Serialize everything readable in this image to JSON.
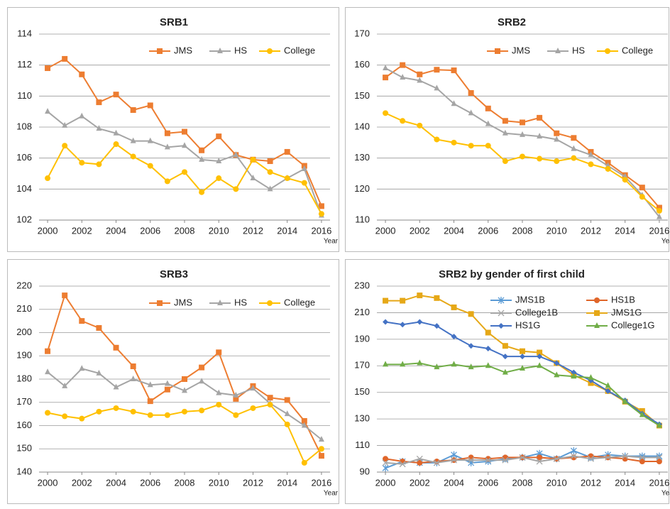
{
  "chart_data": [
    {
      "type": "line",
      "title": "SRB1",
      "xlabel": "Year",
      "x": [
        2000,
        2001,
        2002,
        2003,
        2004,
        2005,
        2006,
        2007,
        2008,
        2009,
        2010,
        2011,
        2012,
        2013,
        2014,
        2015,
        2016
      ],
      "xlim": [
        1999.5,
        2016.5
      ],
      "xticks": [
        2000,
        2002,
        2004,
        2006,
        2008,
        2010,
        2012,
        2014,
        2016
      ],
      "ylim": [
        102,
        114
      ],
      "yticks": [
        102,
        104,
        106,
        108,
        110,
        112,
        114
      ],
      "grid": true,
      "legend": "top-right",
      "series": [
        {
          "name": "JMS",
          "color": "#ed7d31",
          "marker": "square",
          "values": [
            111.8,
            112.4,
            111.4,
            109.6,
            110.1,
            109.1,
            109.4,
            107.6,
            107.7,
            106.5,
            107.4,
            106.2,
            105.9,
            105.8,
            106.4,
            105.5,
            102.9
          ]
        },
        {
          "name": "HS",
          "color": "#a5a5a5",
          "marker": "triangle",
          "values": [
            109.0,
            108.1,
            108.7,
            107.9,
            107.6,
            107.1,
            107.1,
            106.7,
            106.8,
            105.9,
            105.8,
            106.2,
            104.7,
            104.0,
            104.7,
            105.3,
            102.3
          ]
        },
        {
          "name": "College",
          "color": "#ffc000",
          "marker": "circle",
          "values": [
            104.7,
            106.8,
            105.7,
            105.6,
            106.9,
            106.1,
            105.5,
            104.5,
            105.1,
            103.8,
            104.7,
            104.0,
            105.9,
            105.1,
            104.7,
            104.4,
            102.4
          ]
        }
      ]
    },
    {
      "type": "line",
      "title": "SRB2",
      "xlabel": "Year",
      "x": [
        2000,
        2001,
        2002,
        2003,
        2004,
        2005,
        2006,
        2007,
        2008,
        2009,
        2010,
        2011,
        2012,
        2013,
        2014,
        2015,
        2016
      ],
      "xlim": [
        1999.5,
        2016.5
      ],
      "xticks": [
        2000,
        2002,
        2004,
        2006,
        2008,
        2010,
        2012,
        2014,
        2016
      ],
      "ylim": [
        110,
        170
      ],
      "yticks": [
        110,
        120,
        130,
        140,
        150,
        160,
        170
      ],
      "grid": true,
      "legend": "top-right",
      "series": [
        {
          "name": "JMS",
          "color": "#ed7d31",
          "marker": "square",
          "values": [
            156,
            160,
            157,
            158.5,
            158.3,
            151,
            146,
            142,
            141.5,
            143,
            138,
            136.5,
            132,
            128.5,
            124.5,
            120.5,
            114
          ]
        },
        {
          "name": "HS",
          "color": "#a5a5a5",
          "marker": "triangle",
          "values": [
            159,
            156,
            155,
            152.5,
            147.5,
            144.5,
            141,
            138,
            137.5,
            137,
            136,
            133,
            131,
            127.5,
            124,
            118,
            111
          ]
        },
        {
          "name": "College",
          "color": "#ffc000",
          "marker": "circle",
          "values": [
            144.5,
            142,
            140.5,
            136,
            135,
            134,
            134,
            129,
            130.5,
            129.8,
            129,
            130,
            128,
            126.5,
            123,
            117.5,
            113
          ]
        }
      ]
    },
    {
      "type": "line",
      "title": "SRB3",
      "xlabel": "Year",
      "x": [
        2000,
        2001,
        2002,
        2003,
        2004,
        2005,
        2006,
        2007,
        2008,
        2009,
        2010,
        2011,
        2012,
        2013,
        2014,
        2015,
        2016
      ],
      "xlim": [
        1999.5,
        2016.5
      ],
      "xticks": [
        2000,
        2002,
        2004,
        2006,
        2008,
        2010,
        2012,
        2014,
        2016
      ],
      "ylim": [
        140,
        220
      ],
      "yticks": [
        140,
        150,
        160,
        170,
        180,
        190,
        200,
        210,
        220
      ],
      "grid": true,
      "legend": "top-right",
      "series": [
        {
          "name": "JMS",
          "color": "#ed7d31",
          "marker": "square",
          "values": [
            192,
            216,
            205,
            202,
            193.5,
            185.5,
            170.5,
            175.5,
            180,
            185,
            191.5,
            171.5,
            177,
            172,
            171,
            162,
            147
          ]
        },
        {
          "name": "HS",
          "color": "#a5a5a5",
          "marker": "triangle",
          "values": [
            183,
            177,
            184.5,
            182.5,
            176.5,
            180,
            177.5,
            178,
            175,
            179,
            174,
            173,
            176,
            169.5,
            165,
            160,
            154
          ]
        },
        {
          "name": "College",
          "color": "#ffc000",
          "marker": "circle",
          "values": [
            165.5,
            164,
            163,
            166,
            167.5,
            166,
            164.5,
            164.5,
            166,
            166.5,
            169,
            164.5,
            167.5,
            169,
            160.5,
            144,
            150
          ]
        }
      ]
    },
    {
      "type": "line",
      "title": "SRB2 by gender of first child",
      "xlabel": "Year",
      "x": [
        2000,
        2001,
        2002,
        2003,
        2004,
        2005,
        2006,
        2007,
        2008,
        2009,
        2010,
        2011,
        2012,
        2013,
        2014,
        2015,
        2016
      ],
      "xlim": [
        1999.5,
        2016.5
      ],
      "xticks": [
        2000,
        2002,
        2004,
        2006,
        2008,
        2010,
        2012,
        2014,
        2016
      ],
      "ylim": [
        90,
        230
      ],
      "yticks": [
        90,
        110,
        130,
        150,
        170,
        190,
        210,
        230
      ],
      "grid": true,
      "legend": "top-right",
      "series": [
        {
          "name": "JMS1B",
          "color": "#5b9bd5",
          "marker": "asterisk",
          "values": [
            93,
            98,
            97,
            97,
            103,
            97,
            98,
            100,
            101,
            104,
            100,
            106,
            101,
            103,
            102,
            102,
            102
          ]
        },
        {
          "name": "HS1B",
          "color": "#e0662a",
          "marker": "circle",
          "values": [
            100,
            98,
            97,
            98,
            99,
            101,
            100,
            101,
            101,
            101,
            100,
            101,
            102,
            101,
            100,
            98,
            98
          ]
        },
        {
          "name": "College1B",
          "color": "#a5a5a5",
          "marker": "x",
          "values": [
            97,
            96,
            100,
            97,
            99,
            99,
            99,
            99,
            101,
            98,
            100,
            102,
            100,
            101,
            102,
            101,
            101
          ]
        },
        {
          "name": "JMS1G",
          "color": "#e6a817",
          "marker": "square",
          "values": [
            219,
            219,
            223,
            221,
            214,
            209,
            195,
            185,
            181,
            180,
            172,
            163,
            157,
            151,
            143,
            136,
            125
          ]
        },
        {
          "name": "HS1G",
          "color": "#4472c4",
          "marker": "diamond",
          "values": [
            203,
            201,
            203,
            200,
            192,
            185,
            183,
            177,
            177,
            177,
            172,
            165,
            159,
            151,
            144,
            134,
            126
          ]
        },
        {
          "name": "College1G",
          "color": "#70ad47",
          "marker": "triangle",
          "values": [
            171,
            171,
            172,
            169,
            171,
            169,
            170,
            165,
            168,
            170,
            163,
            162,
            161,
            155,
            143,
            133,
            125
          ]
        }
      ]
    }
  ]
}
